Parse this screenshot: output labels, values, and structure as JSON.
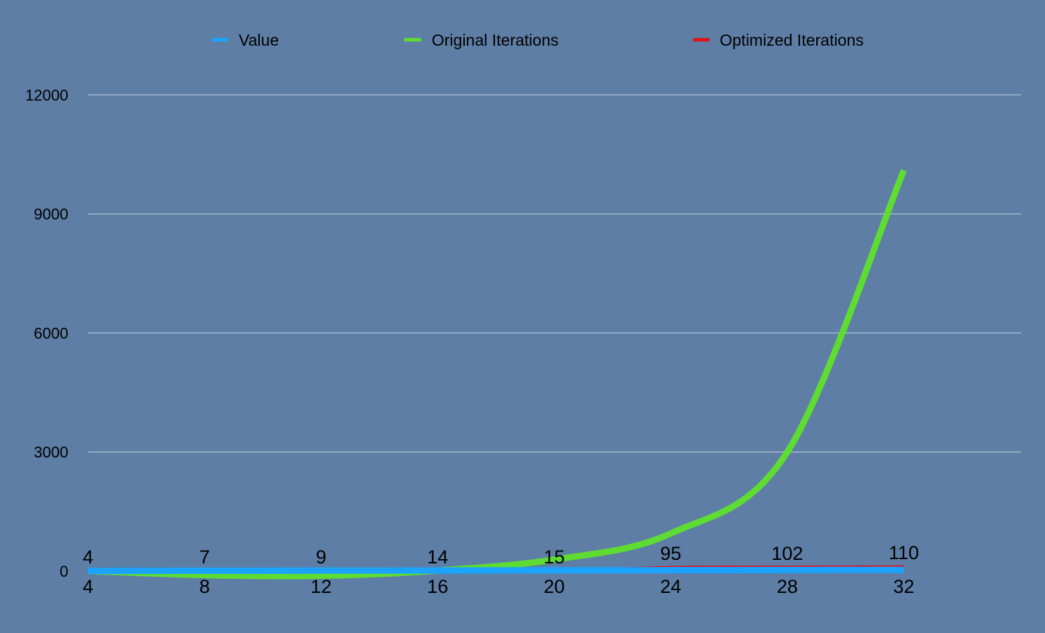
{
  "chart_data": {
    "type": "line",
    "title": "",
    "xlabel": "",
    "ylabel": "",
    "categories": [
      "4",
      "8",
      "12",
      "16",
      "20",
      "24",
      "28",
      "32"
    ],
    "y_ticks": [
      "0",
      "3000",
      "6000",
      "9000",
      "12000"
    ],
    "ylim": [
      0,
      13000
    ],
    "grid": true,
    "legend_position": "top",
    "series": [
      {
        "name": "Value",
        "color": "#1aa3ff",
        "values": [
          4,
          8,
          12,
          16,
          20,
          24,
          28,
          32
        ]
      },
      {
        "name": "Original Iterations",
        "color": "#5edc32",
        "values": [
          4,
          -100,
          -120,
          14,
          290,
          950,
          3000,
          10100
        ]
      },
      {
        "name": "Optimized Iterations",
        "color": "#e0141e",
        "values": [
          4,
          7,
          9,
          14,
          15,
          95,
          102,
          110
        ]
      }
    ],
    "data_labels": [
      "4",
      "7",
      "9",
      "14",
      "15",
      "95",
      "102",
      "110"
    ]
  }
}
